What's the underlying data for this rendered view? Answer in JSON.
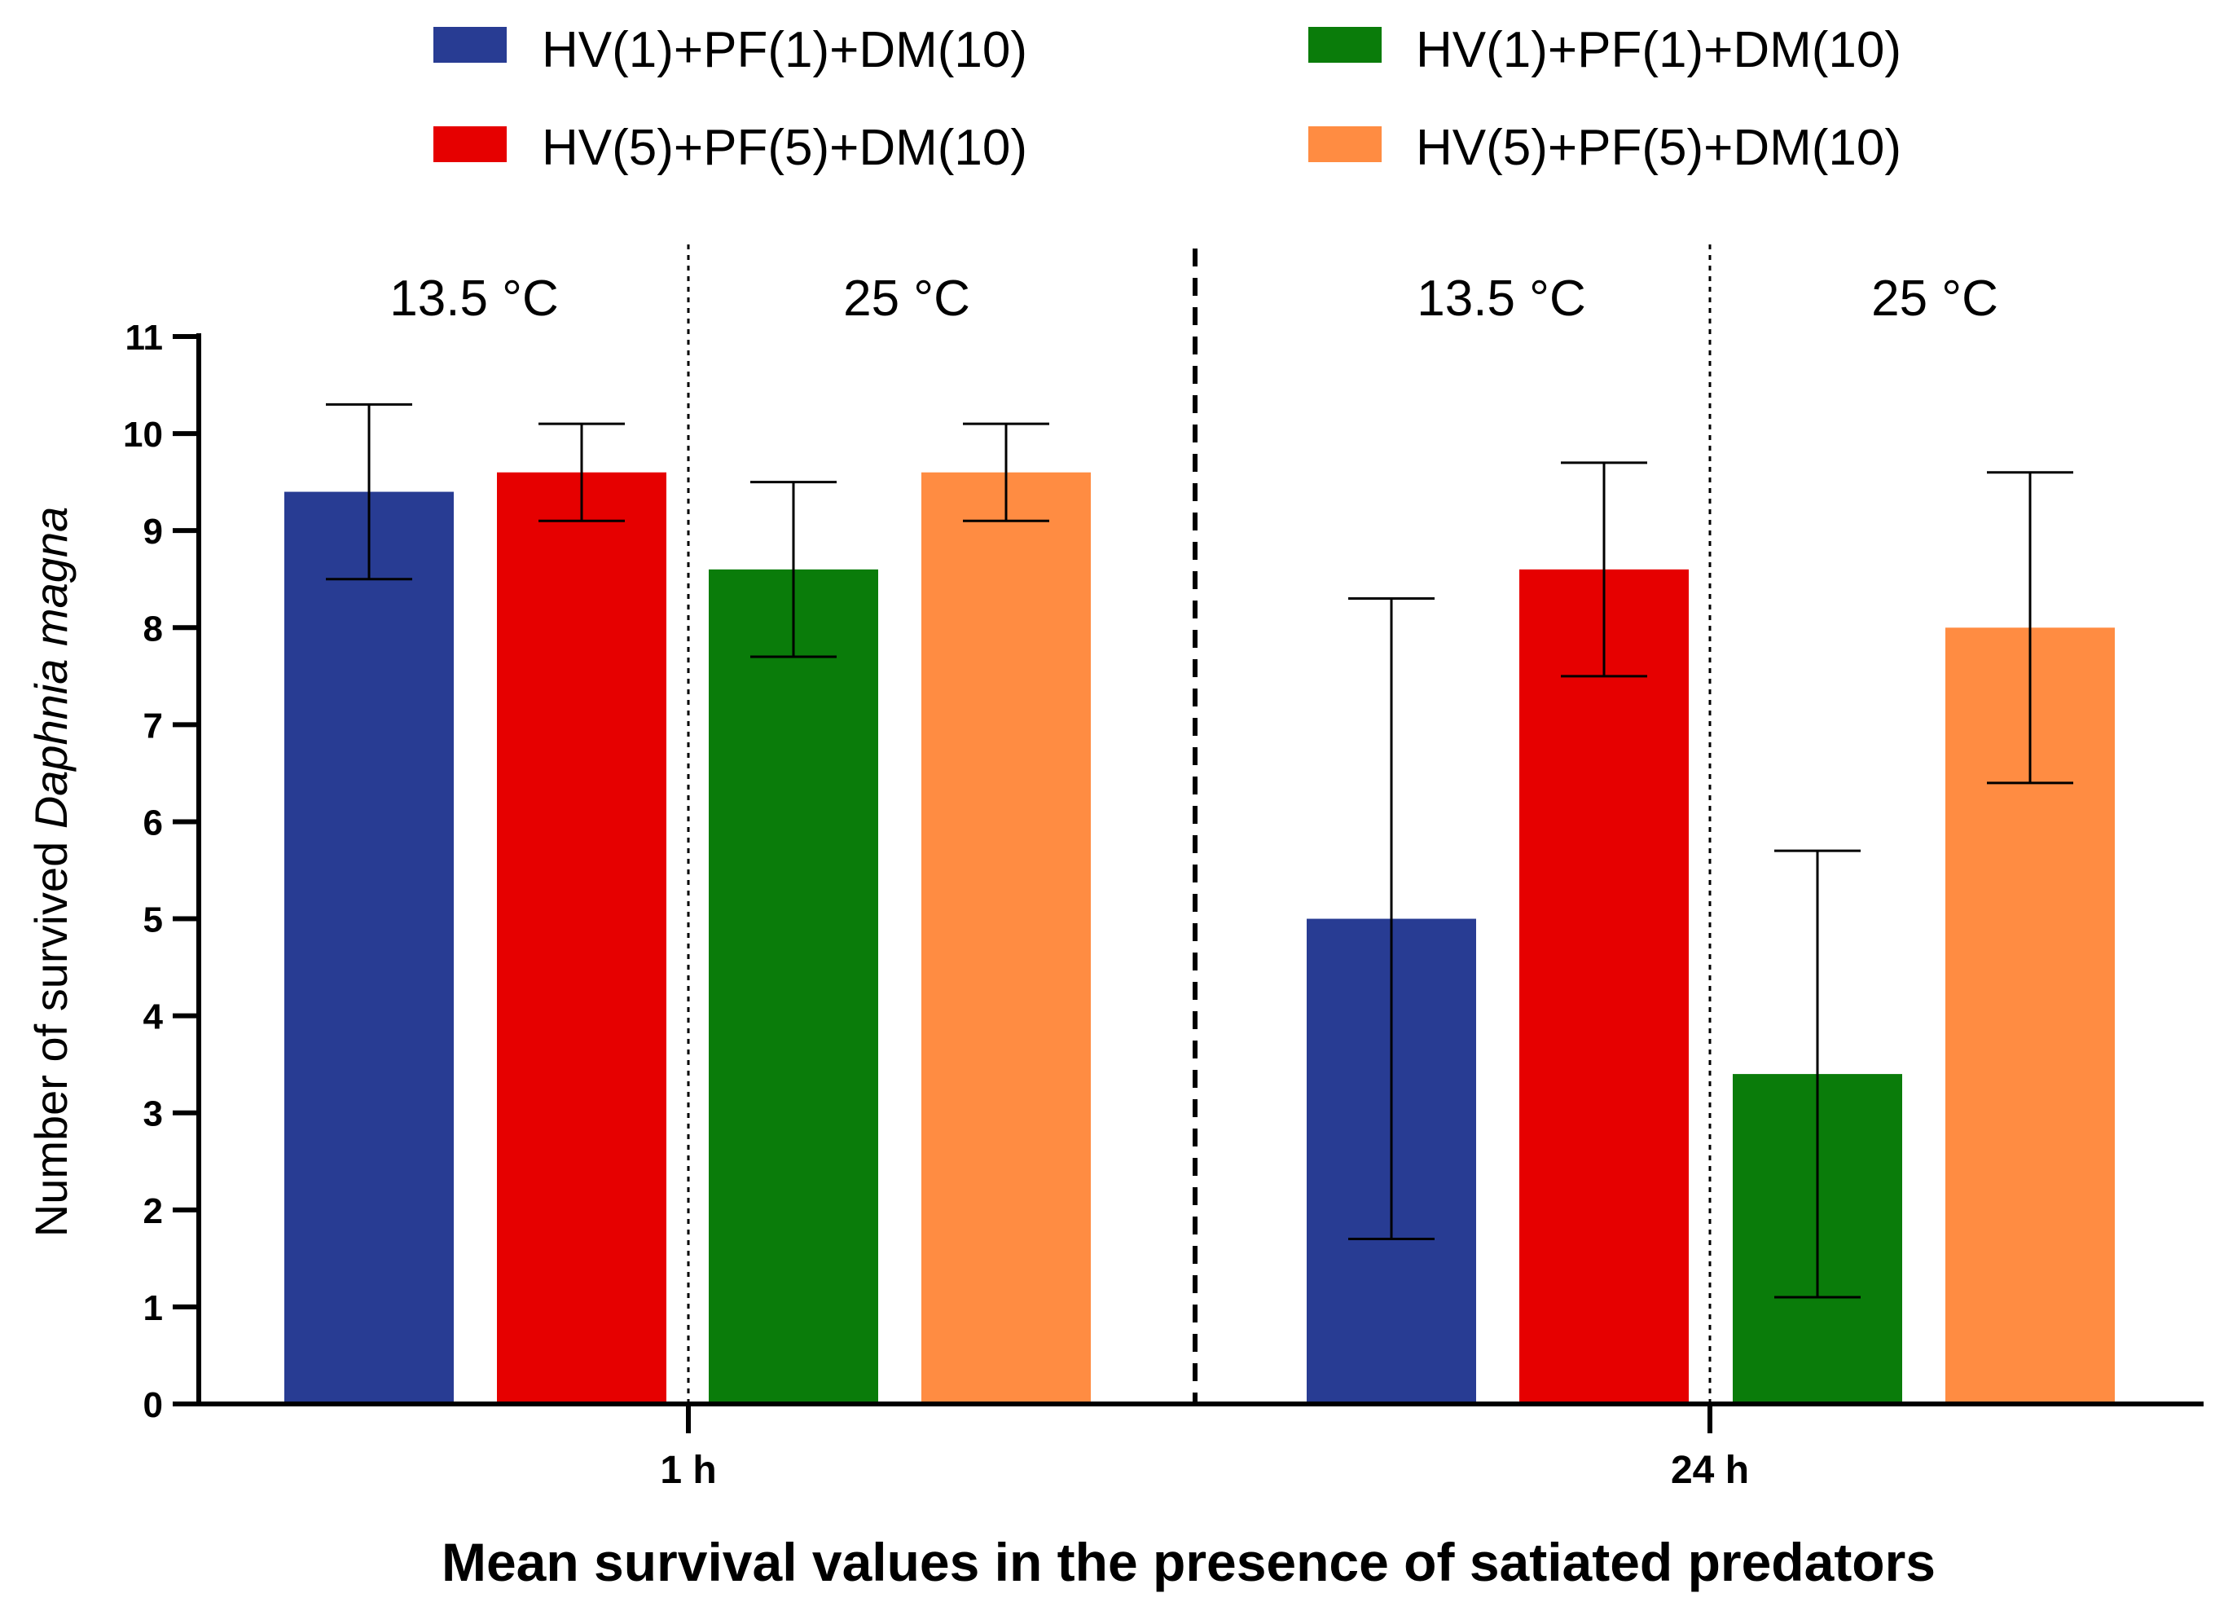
{
  "chart_data": {
    "type": "bar",
    "xlabel": "Mean survival values in the presence of satiated predators",
    "ylabel_prefix": "Number of survived ",
    "ylabel_italic": "Daphnia magna",
    "ylim": [
      0,
      11
    ],
    "yticks": [
      0,
      1,
      2,
      3,
      4,
      5,
      6,
      7,
      8,
      9,
      10,
      11
    ],
    "grid": false,
    "legend_position": "top",
    "legend": [
      {
        "label": "HV(1)+PF(1)+DM(10)",
        "color": "#283C93"
      },
      {
        "label": "HV(1)+PF(1)+DM(10)",
        "color": "#0A7C0A"
      },
      {
        "label": "HV(5)+PF(5)+DM(10)",
        "color": "#E60000"
      },
      {
        "label": "HV(5)+PF(5)+DM(10)",
        "color": "#FF8C42"
      }
    ],
    "groups": [
      {
        "label": "1 h",
        "temperatures": [
          {
            "label": "13.5 °C",
            "bars": [
              {
                "series": "HV(1)+PF(1)+DM(10)",
                "color": "#283C93",
                "value": 9.4,
                "err_low": 8.5,
                "err_high": 10.3
              },
              {
                "series": "HV(5)+PF(5)+DM(10)",
                "color": "#E60000",
                "value": 9.6,
                "err_low": 9.1,
                "err_high": 10.1
              }
            ]
          },
          {
            "label": "25 °C",
            "bars": [
              {
                "series": "HV(1)+PF(1)+DM(10)",
                "color": "#0A7C0A",
                "value": 8.6,
                "err_low": 7.7,
                "err_high": 9.5
              },
              {
                "series": "HV(5)+PF(5)+DM(10)",
                "color": "#FF8C42",
                "value": 9.6,
                "err_low": 9.1,
                "err_high": 10.1
              }
            ]
          }
        ]
      },
      {
        "label": "24 h",
        "temperatures": [
          {
            "label": "13.5 °C",
            "bars": [
              {
                "series": "HV(1)+PF(1)+DM(10)",
                "color": "#283C93",
                "value": 5.0,
                "err_low": 1.7,
                "err_high": 8.3
              },
              {
                "series": "HV(5)+PF(5)+DM(10)",
                "color": "#E60000",
                "value": 8.6,
                "err_low": 7.5,
                "err_high": 9.7
              }
            ]
          },
          {
            "label": "25 °C",
            "bars": [
              {
                "series": "HV(1)+PF(1)+DM(10)",
                "color": "#0A7C0A",
                "value": 3.4,
                "err_low": 1.1,
                "err_high": 5.7
              },
              {
                "series": "HV(5)+PF(5)+DM(10)",
                "color": "#FF8C42",
                "value": 8.0,
                "err_low": 6.4,
                "err_high": 9.6
              }
            ]
          }
        ]
      }
    ]
  }
}
